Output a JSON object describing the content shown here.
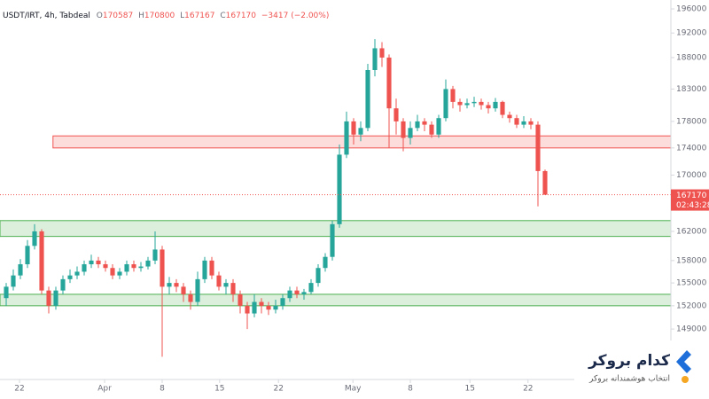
{
  "chart_data": {
    "type": "candlestick",
    "symbol": "USDT/IRT, 4h, Tabdeal",
    "ohlc_labels": [
      "O",
      "H",
      "L",
      "C"
    ],
    "change_text": "−3417 (−2.00%)",
    "countdown": "02:43:28",
    "log": true,
    "grid": false,
    "up_color": "#26a69a",
    "down_color": "#ef5350",
    "ylim": [
      142700,
      197500
    ],
    "yticks": [
      196000,
      192000,
      188000,
      183000,
      178000,
      174000,
      170000,
      162000,
      158000,
      155000,
      152000,
      149000
    ],
    "xlim": [
      -0.875,
      93.75
    ],
    "xticks": [
      {
        "value": 1.875,
        "label": "22"
      },
      {
        "value": 13.875,
        "label": "Apr"
      },
      {
        "value": 22,
        "label": "8"
      },
      {
        "value": 30.1,
        "label": "15"
      },
      {
        "value": 38.4,
        "label": "22"
      },
      {
        "value": 48.9,
        "label": "May"
      },
      {
        "value": 57,
        "label": "8"
      },
      {
        "value": 65.4,
        "label": "15"
      },
      {
        "value": 73.6,
        "label": "22"
      }
    ],
    "open": [
      153000,
      154500,
      156000,
      157500,
      160000,
      162000,
      154000,
      152000,
      154000,
      155500,
      156000,
      156500,
      157500,
      158000,
      157500,
      157000,
      156000,
      156500,
      157500,
      157000,
      157200,
      158000,
      159500,
      154500,
      155000,
      154500,
      153500,
      152500,
      155500,
      158000,
      156000,
      154500,
      155000,
      153500,
      152000,
      151000,
      152500,
      152000,
      151500,
      152000,
      153000,
      154000,
      153500,
      153800,
      155000,
      157000,
      158500,
      163000,
      173000,
      178000,
      176000,
      177000,
      186000,
      189500,
      188000,
      180000,
      178000,
      175500,
      177000,
      178000,
      177500,
      176000,
      178500,
      183000,
      181000,
      180500,
      180800,
      181000,
      180500,
      180000,
      181000,
      179000,
      178500,
      177500,
      178000,
      177500,
      170587
    ],
    "high": [
      155000,
      156800,
      158200,
      160800,
      163000,
      162300,
      154500,
      154500,
      156000,
      156800,
      157200,
      158000,
      158800,
      158500,
      158000,
      157500,
      157000,
      158000,
      158000,
      157800,
      158500,
      162000,
      160000,
      155800,
      155500,
      155000,
      154000,
      156500,
      158500,
      158500,
      156500,
      155500,
      155500,
      154000,
      152500,
      153500,
      153000,
      152500,
      152800,
      153500,
      154500,
      154500,
      154200,
      155500,
      157500,
      159000,
      163500,
      174500,
      179500,
      178500,
      178000,
      187000,
      191000,
      190500,
      188500,
      181500,
      178500,
      178000,
      179000,
      178500,
      178000,
      179000,
      184500,
      183500,
      181500,
      181500,
      181800,
      181500,
      181000,
      181600,
      181200,
      179500,
      179000,
      178800,
      178500,
      178000,
      170800
    ],
    "low": [
      152000,
      154000,
      155500,
      157000,
      159500,
      153500,
      151000,
      151500,
      153500,
      155000,
      155500,
      156000,
      157000,
      157000,
      156500,
      155500,
      155500,
      156000,
      156500,
      156500,
      156800,
      157500,
      145500,
      153500,
      153800,
      152500,
      151500,
      152000,
      155000,
      155500,
      154000,
      153500,
      152500,
      151000,
      149000,
      150500,
      151000,
      150800,
      151000,
      151500,
      152500,
      153000,
      152800,
      153500,
      154500,
      156500,
      158000,
      162500,
      172500,
      174500,
      175000,
      176500,
      185000,
      186500,
      174000,
      176000,
      173500,
      174500,
      176500,
      176500,
      175500,
      175500,
      178000,
      180000,
      179500,
      180000,
      180200,
      179800,
      179200,
      179500,
      178500,
      177800,
      177000,
      177000,
      176800,
      165500,
      167167
    ],
    "close": [
      154500,
      156000,
      157500,
      160000,
      162000,
      154000,
      152000,
      154000,
      155500,
      156000,
      156500,
      157500,
      158000,
      157500,
      157000,
      156000,
      156500,
      157500,
      157000,
      157200,
      158000,
      159500,
      154500,
      155000,
      154500,
      153500,
      152500,
      155500,
      158000,
      156000,
      154500,
      155000,
      153500,
      152000,
      151000,
      152500,
      152000,
      151500,
      152000,
      153000,
      154000,
      153500,
      153800,
      155000,
      157000,
      158500,
      163000,
      173000,
      178000,
      176000,
      177000,
      186000,
      189500,
      188000,
      180000,
      178000,
      175500,
      177000,
      178000,
      177500,
      176000,
      178500,
      183000,
      181000,
      180500,
      180800,
      181000,
      180500,
      180000,
      181000,
      179000,
      178500,
      177500,
      178000,
      177500,
      170587,
      167170
    ],
    "zones": [
      {
        "top": 175800,
        "bottom": 174000,
        "start": 6.6,
        "color": "#ef5350"
      },
      {
        "top": 163500,
        "bottom": 161300,
        "start": -0.875,
        "color": "#4caf50"
      },
      {
        "top": 153500,
        "bottom": 152000,
        "start": -0.875,
        "color": "#4caf50"
      }
    ]
  },
  "logo": {
    "title": "کدام بروکر",
    "subtitle": "انتخاب هوشمندانه بروکر"
  }
}
